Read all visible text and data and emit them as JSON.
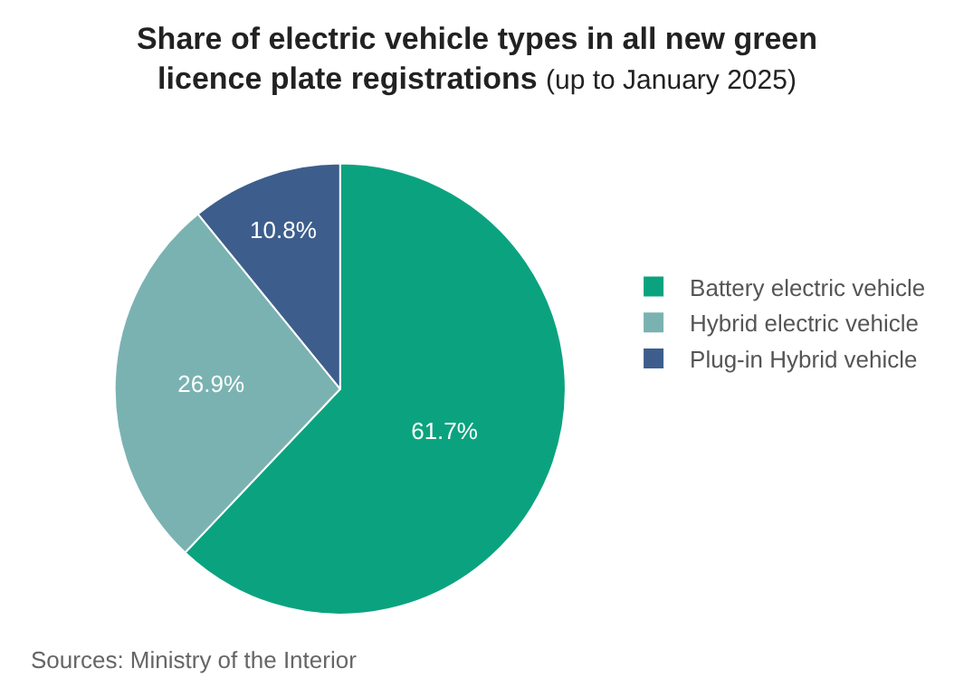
{
  "chart_data": {
    "type": "pie",
    "title": "Share of electric vehicle types in all new green licence plate registrations",
    "subtitle": "(up to January 2025)",
    "categories": [
      "Battery electric vehicle",
      "Hybrid electric vehicle",
      "Plug-in Hybrid vehicle"
    ],
    "values": [
      61.7,
      26.9,
      10.8
    ],
    "value_labels": [
      "61.7%",
      "26.9%",
      "10.8%"
    ],
    "colors": [
      "#0ba37f",
      "#7ab2b2",
      "#3d5e8c"
    ],
    "legend": "right",
    "annotations": [
      "Sources: Ministry of the Interior"
    ]
  }
}
